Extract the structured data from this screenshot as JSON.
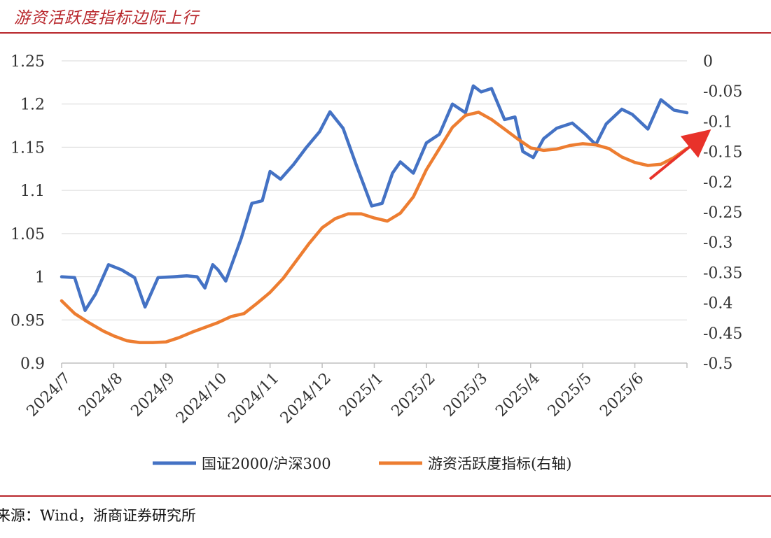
{
  "header": {
    "title": "游资活跃度指标边际上行"
  },
  "footer": {
    "source": "来源：Wind，浙商证券研究所"
  },
  "chart_data": {
    "type": "line",
    "title": "游资活跃度指标边际上行",
    "categories": [
      "2024/7",
      "2024/8",
      "2024/9",
      "2024/10",
      "2024/11",
      "2024/12",
      "2025/1",
      "2025/2",
      "2025/3",
      "2025/4",
      "2025/5",
      "2025/6"
    ],
    "left_axis": {
      "ylim": [
        0.9,
        1.25
      ],
      "ticks": [
        "1.25",
        "1.2",
        "1.15",
        "1.1",
        "1.05",
        "1",
        "0.95",
        "0.9"
      ]
    },
    "right_axis": {
      "ylim": [
        -0.5,
        0
      ],
      "ticks": [
        "0",
        "-0.05",
        "-0.1",
        "-0.15",
        "-0.2",
        "-0.25",
        "-0.3",
        "-0.35",
        "-0.4",
        "-0.45",
        "-0.5"
      ]
    },
    "series": [
      {
        "name": "国证2000/沪深300",
        "axis": "left",
        "color": "#4472c4",
        "x": [
          0,
          0.25,
          0.45,
          0.65,
          0.9,
          1.15,
          1.4,
          1.6,
          1.85,
          2.15,
          2.4,
          2.6,
          2.75,
          2.9,
          3.0,
          3.15,
          3.45,
          3.65,
          3.85,
          4.0,
          4.2,
          4.45,
          4.7,
          4.95,
          5.15,
          5.4,
          5.65,
          5.95,
          6.15,
          6.35,
          6.5,
          6.75,
          7.0,
          7.25,
          7.5,
          7.75,
          7.9,
          8.05,
          8.25,
          8.5,
          8.7,
          8.85,
          9.05,
          9.25,
          9.5,
          9.8,
          10.05,
          10.25,
          10.45,
          10.75,
          10.95,
          11.25,
          11.5,
          11.75,
          12.0
        ],
        "values": [
          1.0,
          0.999,
          0.961,
          0.98,
          1.014,
          1.008,
          0.999,
          0.965,
          0.999,
          1.0,
          1.001,
          1.0,
          0.987,
          1.014,
          1.008,
          0.995,
          1.045,
          1.085,
          1.088,
          1.122,
          1.113,
          1.13,
          1.15,
          1.168,
          1.191,
          1.172,
          1.13,
          1.082,
          1.085,
          1.12,
          1.133,
          1.12,
          1.155,
          1.165,
          1.2,
          1.19,
          1.221,
          1.214,
          1.218,
          1.182,
          1.185,
          1.145,
          1.138,
          1.16,
          1.172,
          1.178,
          1.165,
          1.153,
          1.177,
          1.194,
          1.188,
          1.171,
          1.205,
          1.193,
          1.19
        ]
      },
      {
        "name": "游资活跃度指标(右轴)",
        "axis": "right",
        "color": "#ed7d31",
        "x": [
          0,
          0.25,
          0.5,
          0.8,
          1.0,
          1.25,
          1.5,
          1.75,
          2.0,
          2.25,
          2.5,
          2.75,
          3.0,
          3.25,
          3.5,
          3.75,
          4.0,
          4.25,
          4.5,
          4.75,
          5.0,
          5.25,
          5.5,
          5.75,
          6.0,
          6.25,
          6.5,
          6.75,
          7.0,
          7.25,
          7.5,
          7.75,
          8.0,
          8.25,
          8.5,
          8.75,
          9.0,
          9.25,
          9.5,
          9.75,
          10.0,
          10.25,
          10.5,
          10.75,
          11.0,
          11.25,
          11.5,
          11.75,
          12.0
        ],
        "values": [
          -0.397,
          -0.418,
          -0.432,
          -0.447,
          -0.455,
          -0.463,
          -0.466,
          -0.466,
          -0.465,
          -0.458,
          -0.449,
          -0.441,
          -0.433,
          -0.423,
          -0.418,
          -0.401,
          -0.383,
          -0.36,
          -0.331,
          -0.302,
          -0.276,
          -0.261,
          -0.253,
          -0.253,
          -0.26,
          -0.265,
          -0.252,
          -0.225,
          -0.18,
          -0.145,
          -0.11,
          -0.09,
          -0.085,
          -0.097,
          -0.113,
          -0.129,
          -0.144,
          -0.148,
          -0.146,
          -0.14,
          -0.137,
          -0.139,
          -0.145,
          -0.159,
          -0.168,
          -0.173,
          -0.171,
          -0.16,
          -0.145
        ]
      }
    ],
    "annotation": "red arrow pointing up-right toward -0.1 on right axis"
  }
}
